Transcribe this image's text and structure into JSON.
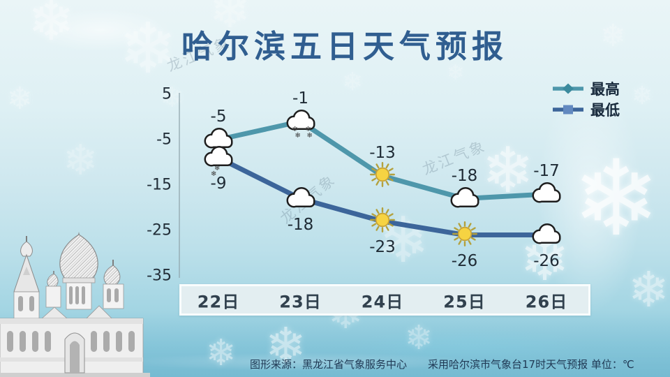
{
  "title": "哈尔滨五日天气预报",
  "chart_data": {
    "type": "line",
    "title": "哈尔滨五日天气预报",
    "categories": [
      "22日",
      "23日",
      "24日",
      "25日",
      "26日"
    ],
    "series": [
      {
        "name": "最高",
        "values": [
          -5,
          -1,
          -13,
          -18,
          -17
        ],
        "color": "#4e97ab",
        "marker": "diamond",
        "marker_color": "#3b8a9d",
        "icons": [
          "cloud",
          "cloud-snow-4",
          "sun",
          "cloud",
          "cloud"
        ]
      },
      {
        "name": "最低",
        "values": [
          -9,
          -18,
          -23,
          -26,
          -26
        ],
        "color": "#3c659a",
        "marker": "square",
        "marker_color": "#6289c0",
        "icons": [
          "cloud-snow-2",
          "cloud",
          "sun",
          "sun",
          "cloud"
        ]
      }
    ],
    "yticks": [
      5,
      -5,
      -15,
      -25,
      -35
    ],
    "ylim": [
      -35,
      5
    ],
    "xlabel": "",
    "ylabel": "",
    "grid": false,
    "legend_position": "top-right",
    "unit": "℃"
  },
  "footer": {
    "source": "图形来源：黑龙江省气象服务中心",
    "note": "采用哈尔滨市气象台17时天气预报 单位：℃"
  },
  "watermark": "龙江气象",
  "colors": {
    "title_blue": "#305e90",
    "high_teal": "#4e97ab",
    "low_blue": "#3c659a",
    "sun_yellow": "#f6d342",
    "background_ice": "#cde7ee"
  }
}
